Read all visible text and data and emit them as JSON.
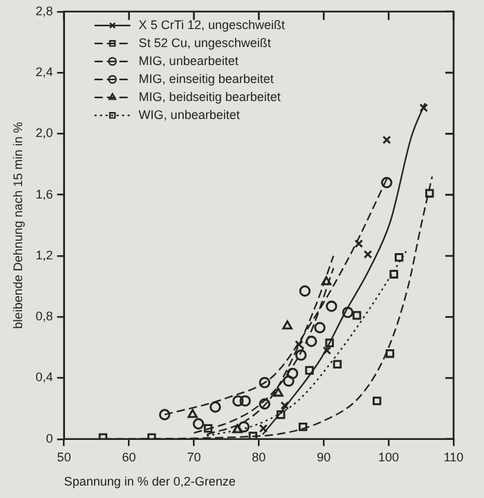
{
  "chart_data": {
    "type": "scatter",
    "xlabel": "Spannung in % der 0,2-Grenze",
    "ylabel": "bleibende Dehnung nach 15 min in %",
    "xlim": [
      50,
      110
    ],
    "ylim": [
      0,
      2.8
    ],
    "xticks": [
      50,
      60,
      70,
      80,
      90,
      100,
      110
    ],
    "yticks": [
      {
        "value": 0,
        "label": "0"
      },
      {
        "value": 0.4,
        "label": "0,4"
      },
      {
        "value": 0.8,
        "label": "0,8"
      },
      {
        "value": 1.2,
        "label": "1,2"
      },
      {
        "value": 1.6,
        "label": "1,6"
      },
      {
        "value": 2.0,
        "label": "2,0"
      },
      {
        "value": 2.4,
        "label": "2,4"
      },
      {
        "value": 2.8,
        "label": "2,8"
      }
    ],
    "grid": false,
    "legend": "top left",
    "series": [
      {
        "name": "X 5 CrTi 12, ungeschweißt",
        "color": "#222222",
        "marker": "cross",
        "line_style": "solid",
        "x": [
          80.7,
          84,
          86.2,
          90.5,
          95.4,
          96.8,
          99.7,
          105.4
        ],
        "values": [
          0.07,
          0.22,
          0.62,
          0.58,
          1.28,
          1.21,
          1.96,
          2.17
        ]
      },
      {
        "name": "St 52 Cu, ungeschweißt",
        "color": "#222222",
        "marker": "square",
        "line_style": "dashed",
        "x": [
          56,
          63.5,
          79.1,
          86.8,
          98.2,
          100.2,
          101.6,
          106.3
        ],
        "values": [
          0.01,
          0.01,
          0.02,
          0.08,
          0.25,
          0.56,
          1.19,
          1.61
        ]
      },
      {
        "name": "MIG, unbearbeitet",
        "color": "#222222",
        "marker": "circle",
        "line_style": "dashed",
        "x": [
          70.7,
          76.8,
          77.9,
          80.9,
          84.6,
          88.1,
          89.4,
          91.2,
          93.7
        ],
        "values": [
          0.1,
          0.25,
          0.25,
          0.23,
          0.38,
          0.64,
          0.73,
          0.87,
          0.83
        ]
      },
      {
        "name": "MIG, einseitig bearbeitet",
        "color": "#222222",
        "marker": "circle",
        "line_style": "dashed",
        "x": [
          65.5,
          73.3,
          77.7,
          80.9,
          85.2,
          86.5,
          87.1,
          99.7
        ],
        "values": [
          0.16,
          0.21,
          0.08,
          0.37,
          0.43,
          0.55,
          0.97,
          1.68
        ]
      },
      {
        "name": "MIG, beidseitig bearbeitet",
        "color": "#222222",
        "marker": "triangle",
        "line_style": "dashed",
        "x": [
          69.8,
          76.7,
          83,
          84.4,
          90.4
        ],
        "values": [
          0.16,
          0.06,
          0.3,
          0.74,
          1.03
        ]
      },
      {
        "name": "WIG, unbearbeitet",
        "color": "#222222",
        "marker": "square",
        "line_style": "dotted",
        "x": [
          72.2,
          83.4,
          87.8,
          90.9,
          92.1,
          95.1,
          100.8
        ],
        "values": [
          0.07,
          0.16,
          0.45,
          0.63,
          0.49,
          0.81,
          1.08
        ]
      },
      {
        "type": "line",
        "color": "#222222",
        "marker": "none",
        "line_style": "solid",
        "x": [
          80.6,
          84.6,
          89.6,
          93.3,
          97,
          100.3,
          103.5,
          105.6
        ],
        "values": [
          0.03,
          0.24,
          0.53,
          0.83,
          1.11,
          1.43,
          1.98,
          2.2
        ]
      },
      {
        "type": "line",
        "color": "#222222",
        "marker": "none",
        "line_style": "dashed",
        "x": [
          56,
          80,
          90,
          96,
          100,
          103,
          105,
          106.7
        ],
        "values": [
          0,
          0.02,
          0.12,
          0.3,
          0.6,
          1.0,
          1.4,
          1.72
        ]
      },
      {
        "type": "line",
        "color": "#222222",
        "marker": "none",
        "line_style": "dashed",
        "x": [
          70,
          76,
          80,
          84,
          88,
          91.5
        ],
        "values": [
          0.04,
          0.12,
          0.22,
          0.4,
          0.7,
          1.12
        ]
      },
      {
        "type": "line",
        "color": "#222222",
        "marker": "none",
        "line_style": "dashed",
        "x": [
          65.5,
          75.1,
          82.4,
          88.2,
          94,
          99.9
        ],
        "values": [
          0.16,
          0.27,
          0.42,
          0.77,
          1.2,
          1.72
        ]
      },
      {
        "type": "line",
        "color": "#222222",
        "marker": "none",
        "line_style": "dashed",
        "x": [
          72,
          78,
          82,
          86,
          89,
          91.5
        ],
        "values": [
          0.03,
          0.12,
          0.28,
          0.6,
          0.9,
          1.2
        ]
      },
      {
        "type": "line",
        "color": "#222222",
        "marker": "none",
        "line_style": "dotted",
        "x": [
          72,
          80,
          86,
          92,
          97,
          102.7
        ],
        "values": [
          0.02,
          0.1,
          0.25,
          0.55,
          0.85,
          1.23
        ]
      }
    ]
  }
}
